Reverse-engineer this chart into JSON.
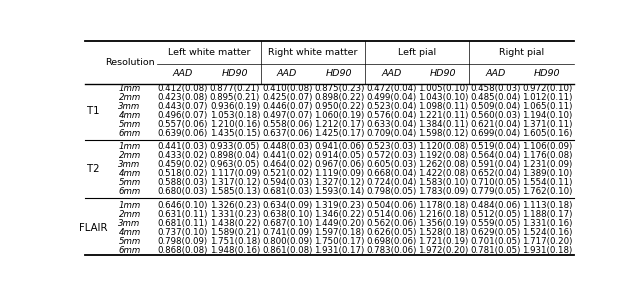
{
  "col_groups": [
    "Left white matter",
    "Right white matter",
    "Left pial",
    "Right pial"
  ],
  "sub_cols": [
    "AAD",
    "HD90"
  ],
  "row_groups": [
    "T1",
    "T2",
    "FLAIR"
  ],
  "resolutions": [
    "1mm",
    "2mm",
    "3mm",
    "4mm",
    "5mm",
    "6mm"
  ],
  "data": {
    "T1": {
      "Left white matter": {
        "AAD": [
          "0.412(0.08)",
          "0.423(0.08)",
          "0.443(0.07)",
          "0.496(0.07)",
          "0.557(0.06)",
          "0.639(0.06)"
        ],
        "HD90": [
          "0.877(0.21)",
          "0.895(0.21)",
          "0.936(0.19)",
          "1.053(0.18)",
          "1.210(0.16)",
          "1.435(0.15)"
        ]
      },
      "Right white matter": {
        "AAD": [
          "0.410(0.08)",
          "0.425(0.07)",
          "0.446(0.07)",
          "0.497(0.07)",
          "0.558(0.06)",
          "0.637(0.06)"
        ],
        "HD90": [
          "0.875(0.23)",
          "0.898(0.22)",
          "0.950(0.22)",
          "1.060(0.19)",
          "1.212(0.17)",
          "1.425(0.17)"
        ]
      },
      "Left pial": {
        "AAD": [
          "0.472(0.04)",
          "0.499(0.04)",
          "0.523(0.04)",
          "0.576(0.04)",
          "0.633(0.04)",
          "0.709(0.04)"
        ],
        "HD90": [
          "1.005(0.10)",
          "1.043(0.10)",
          "1.098(0.11)",
          "1.221(0.11)",
          "1.384(0.11)",
          "1.598(0.12)"
        ]
      },
      "Right pial": {
        "AAD": [
          "0.458(0.03)",
          "0.485(0.04)",
          "0.509(0.04)",
          "0.560(0.03)",
          "0.621(0.04)",
          "0.699(0.04)"
        ],
        "HD90": [
          "0.972(0.10)",
          "1.012(0.11)",
          "1.065(0.11)",
          "1.194(0.10)",
          "1.371(0.11)",
          "1.605(0.16)"
        ]
      }
    },
    "T2": {
      "Left white matter": {
        "AAD": [
          "0.441(0.03)",
          "0.433(0.02)",
          "0.459(0.02)",
          "0.518(0.02)",
          "0.588(0.03)",
          "0.680(0.03)"
        ],
        "HD90": [
          "0.933(0.05)",
          "0.898(0.04)",
          "0.963(0.05)",
          "1.117(0.09)",
          "1.317(0.12)",
          "1.585(0.13)"
        ]
      },
      "Right white matter": {
        "AAD": [
          "0.448(0.03)",
          "0.441(0.02)",
          "0.464(0.02)",
          "0.521(0.02)",
          "0.594(0.03)",
          "0.681(0.03)"
        ],
        "HD90": [
          "0.941(0.06)",
          "0.914(0.05)",
          "0.967(0.06)",
          "1.119(0.09)",
          "1.327(0.12)",
          "1.593(0.14)"
        ]
      },
      "Left pial": {
        "AAD": [
          "0.523(0.03)",
          "0.572(0.03)",
          "0.605(0.03)",
          "0.668(0.04)",
          "0.724(0.04)",
          "0.798(0.05)"
        ],
        "HD90": [
          "1.120(0.08)",
          "1.192(0.08)",
          "1.262(0.08)",
          "1.422(0.08)",
          "1.583(0.10)",
          "1.783(0.09)"
        ]
      },
      "Right pial": {
        "AAD": [
          "0.519(0.04)",
          "0.564(0.04)",
          "0.591(0.04)",
          "0.652(0.04)",
          "0.710(0.05)",
          "0.779(0.05)"
        ],
        "HD90": [
          "1.106(0.09)",
          "1.176(0.08)",
          "1.231(0.09)",
          "1.389(0.10)",
          "1.554(0.11)",
          "1.762(0.10)"
        ]
      }
    },
    "FLAIR": {
      "Left white matter": {
        "AAD": [
          "0.646(0.10)",
          "0.631(0.11)",
          "0.681(0.11)",
          "0.737(0.10)",
          "0.798(0.09)",
          "0.868(0.08)"
        ],
        "HD90": [
          "1.326(0.23)",
          "1.331(0.23)",
          "1.438(0.22)",
          "1.589(0.21)",
          "1.751(0.18)",
          "1.948(0.16)"
        ]
      },
      "Right white matter": {
        "AAD": [
          "0.634(0.09)",
          "0.638(0.10)",
          "0.687(0.10)",
          "0.741(0.09)",
          "0.800(0.09)",
          "0.861(0.08)"
        ],
        "HD90": [
          "1.319(0.23)",
          "1.346(0.22)",
          "1.449(0.20)",
          "1.597(0.18)",
          "1.750(0.17)",
          "1.931(0.17)"
        ]
      },
      "Left pial": {
        "AAD": [
          "0.504(0.06)",
          "0.514(0.06)",
          "0.562(0.06)",
          "0.626(0.05)",
          "0.698(0.06)",
          "0.783(0.06)"
        ],
        "HD90": [
          "1.178(0.18)",
          "1.216(0.18)",
          "1.356(0.19)",
          "1.528(0.18)",
          "1.721(0.19)",
          "1.972(0.20)"
        ]
      },
      "Right pial": {
        "AAD": [
          "0.484(0.06)",
          "0.512(0.05)",
          "0.559(0.05)",
          "0.629(0.05)",
          "0.701(0.05)",
          "0.781(0.05)"
        ],
        "HD90": [
          "1.113(0.18)",
          "1.188(0.17)",
          "1.331(0.16)",
          "1.524(0.16)",
          "1.717(0.20)",
          "1.931(0.18)"
        ]
      }
    }
  },
  "bg_color": "#ffffff",
  "text_color": "#000000",
  "line_color": "#000000",
  "font_size": 6.2,
  "header_font_size": 6.8
}
